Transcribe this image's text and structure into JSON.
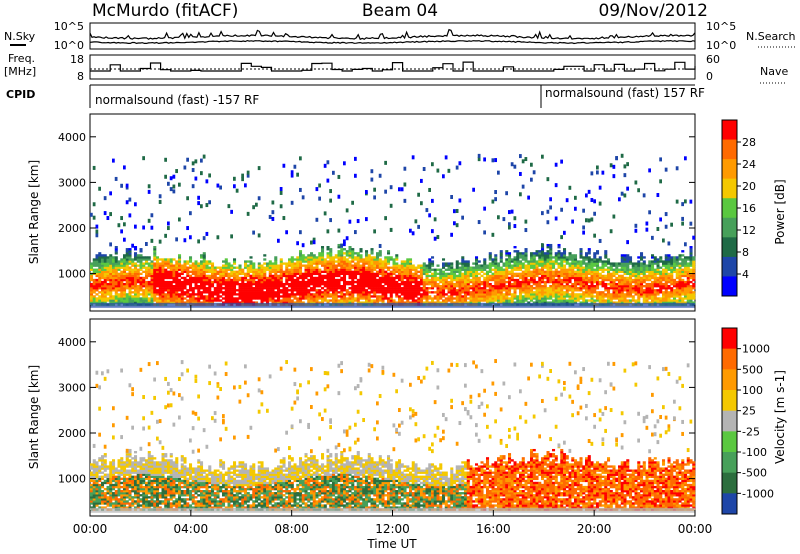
{
  "header": {
    "station": "McMurdo (fitACF)",
    "beam": "Beam 04",
    "date": "09/Nov/2012"
  },
  "left_labels": {
    "nsky": "N.Sky",
    "freq_1": "Freq.",
    "freq_2": "[MHz]",
    "cpid": "CPID"
  },
  "right_labels": {
    "nsearch": "N.Search",
    "nave": "Nave"
  },
  "cpid_segments": [
    {
      "label": "normalsound (fast) -157 RF"
    },
    {
      "label": "normalsound (fast) 157 RF"
    }
  ],
  "noise_panel": {
    "left_ticks": [
      "10^5",
      "10^0"
    ],
    "right_ticks": [
      "10^5",
      "10^0"
    ]
  },
  "freq_panel": {
    "left_ticks": [
      "18",
      "8"
    ],
    "right_ticks": [
      "60",
      "0"
    ]
  },
  "time_axis": {
    "label": "Time UT",
    "ticks": [
      "00:00",
      "04:00",
      "08:00",
      "12:00",
      "16:00",
      "20:00",
      "00:00"
    ]
  },
  "colors": {
    "power": [
      "#0000ff",
      "#1e46a8",
      "#1f6a46",
      "#47a05a",
      "#5ac840",
      "#f4c800",
      "#ff9a00",
      "#ff6a00",
      "#ff0000"
    ],
    "velocity": [
      "#1e46a8",
      "#2c6e3e",
      "#47a05a",
      "#5ac840",
      "#b4b4b4",
      "#f4c800",
      "#ff9a00",
      "#ff6a00",
      "#ff0000"
    ]
  },
  "chart_data": [
    {
      "type": "heatmap",
      "title": "Power",
      "ylabel": "Slant Range [km]",
      "xlabel": "",
      "yticks": [
        "1000",
        "2000",
        "3000",
        "4000"
      ],
      "ylim": [
        180,
        4500
      ],
      "colorbar": {
        "label": "Power [dB]",
        "ticks": [
          "28",
          "24",
          "20",
          "16",
          "12",
          "8",
          "4"
        ]
      }
    },
    {
      "type": "heatmap",
      "title": "Velocity",
      "ylabel": "Slant Range [km]",
      "xlabel": "Time UT",
      "yticks": [
        "1000",
        "2000",
        "3000",
        "4000"
      ],
      "ylim": [
        180,
        4500
      ],
      "colorbar": {
        "label": "Velocity [m s-1]",
        "ticks": [
          "1000",
          "500",
          "100",
          "25",
          "-25",
          "-100",
          "-500",
          "-1000"
        ]
      }
    }
  ]
}
